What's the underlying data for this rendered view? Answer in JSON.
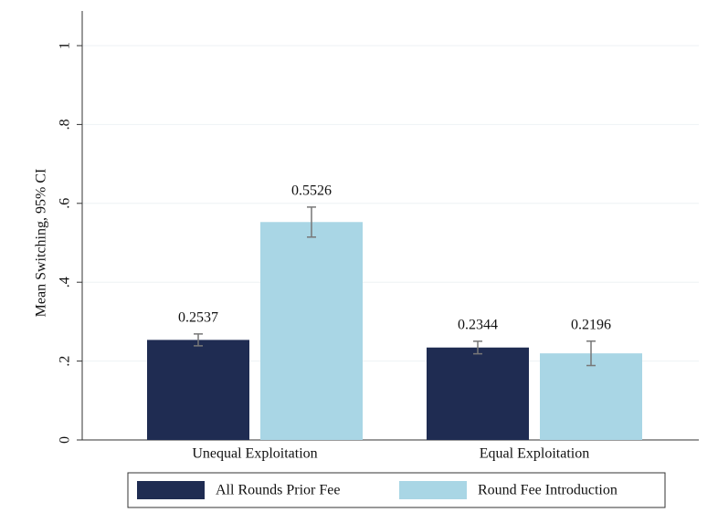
{
  "chart_data": {
    "type": "bar",
    "ylabel": "Mean Switching, 95% CI",
    "categories": [
      "Unequal Exploitation",
      "Equal Exploitation"
    ],
    "series": [
      {
        "name": "All Rounds Prior Fee",
        "color": "#1f2c52",
        "values": [
          0.2537,
          0.2344
        ],
        "error": [
          0.015,
          0.016
        ]
      },
      {
        "name": "Round Fee Introduction",
        "color": "#a9d6e5",
        "values": [
          0.5526,
          0.2196
        ],
        "error": [
          0.038,
          0.031
        ]
      }
    ],
    "ylim": [
      0,
      1
    ],
    "yticks": [
      0,
      {
        "value": 0.2,
        "label": ".2"
      },
      {
        "value": 0.4,
        "label": ".4"
      },
      {
        "value": 0.6,
        "label": ".6"
      },
      {
        "value": 0.8,
        "label": ".8"
      },
      1
    ],
    "grid": true,
    "legend": "bottom"
  }
}
